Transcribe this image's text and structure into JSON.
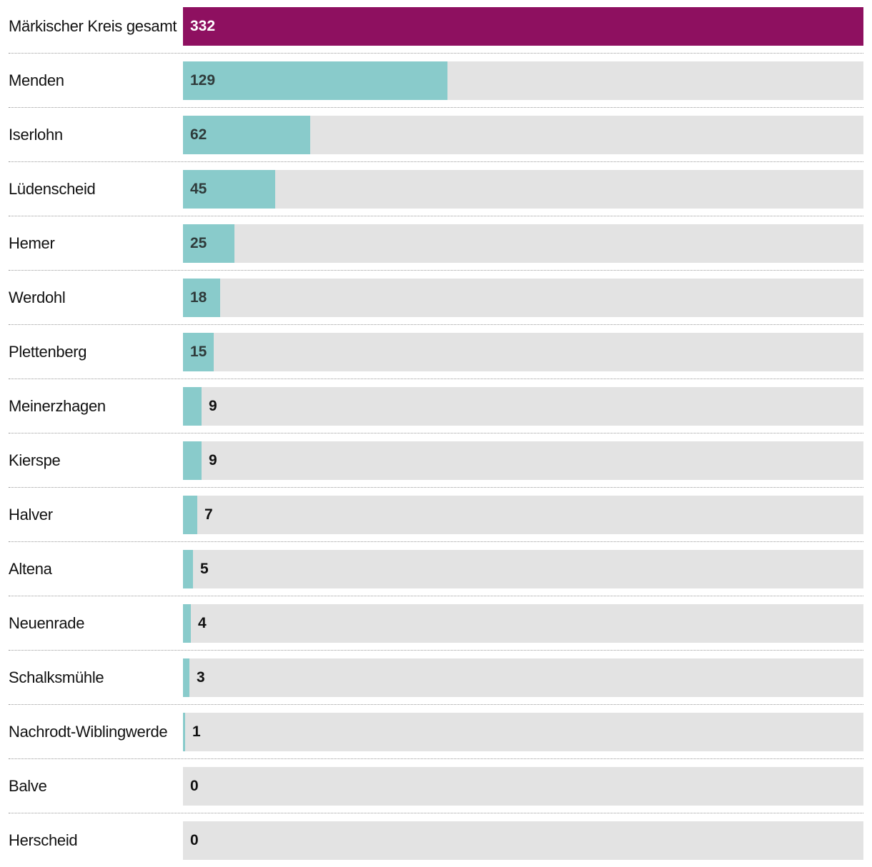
{
  "chart_data": {
    "type": "bar",
    "orientation": "horizontal",
    "max": 332,
    "categories": [
      "Märkischer Kreis gesamt",
      "Menden",
      "Iserlohn",
      "Lüdenscheid",
      "Hemer",
      "Werdohl",
      "Plettenberg",
      "Meinerzhagen",
      "Kierspe",
      "Halver",
      "Altena",
      "Neuenrade",
      "Schalksmühle",
      "Nachrodt-Wiblingwerde",
      "Balve",
      "Herscheid"
    ],
    "values": [
      332,
      129,
      62,
      45,
      25,
      18,
      15,
      9,
      9,
      7,
      5,
      4,
      3,
      1,
      0,
      0
    ],
    "colors": {
      "total": "#8e1060",
      "bar": "#89cbcb",
      "track": "#e3e3e3",
      "label_inside": "#2f3b3b",
      "label_inside_total": "#ffffff",
      "label_outside": "#111111"
    }
  }
}
